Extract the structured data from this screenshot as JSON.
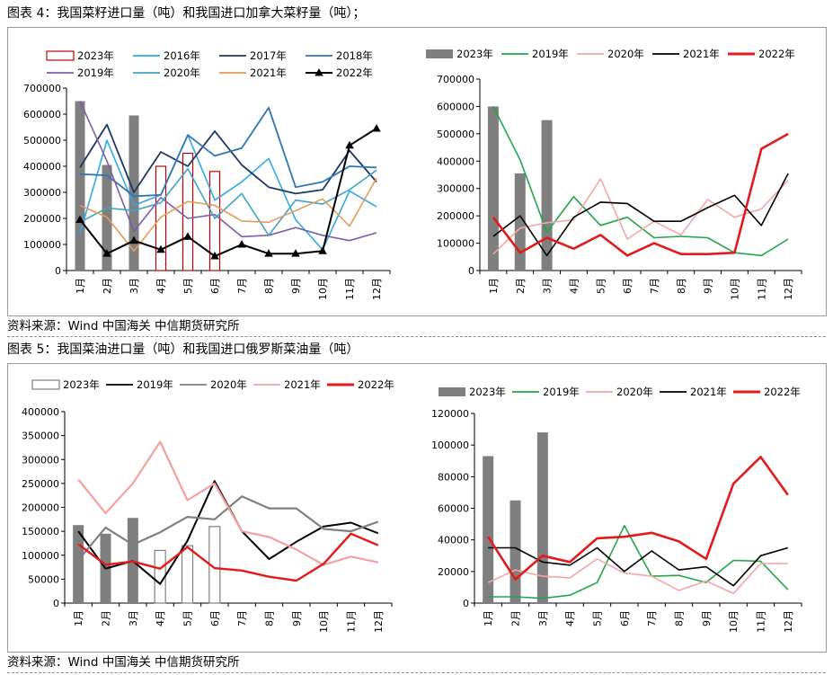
{
  "figure4": {
    "title": "图表 4：我国菜籽进口量（吨）和我国进口加拿大菜籽量（吨）；",
    "source": "资料来源：Wind 中国海关 中信期货研究所"
  },
  "figure5": {
    "title": "图表 5：我国菜油进口量（吨）和我国进口俄罗斯菜油量（吨）",
    "source": "资料来源：Wind 中国海关 中信期货研究所"
  },
  "chart_data": [
    {
      "id": "c1",
      "type": "bar",
      "categories": [
        "1月",
        "2月",
        "3月",
        "4月",
        "5月",
        "6月",
        "7月",
        "8月",
        "9月",
        "10月",
        "11月",
        "12月"
      ],
      "ylim": [
        0,
        700000
      ],
      "yticks": [
        "0",
        "100000",
        "200000",
        "300000",
        "400000",
        "500000",
        "600000",
        "700000"
      ],
      "bars": [
        {
          "name": "2023年",
          "color": "#c00000",
          "style": "outline",
          "values": [
            null,
            null,
            null,
            400000,
            450000,
            380000,
            null,
            null,
            null,
            null,
            null,
            null
          ]
        },
        {
          "name": "",
          "color": "#7f7f7f",
          "style": "fill",
          "values": [
            650000,
            405000,
            595000,
            null,
            null,
            null,
            null,
            null,
            null,
            null,
            null,
            null
          ]
        }
      ],
      "series": [
        {
          "name": "2016年",
          "color": "#2eaae6",
          "width": 1.6,
          "values": [
            140000,
            500000,
            250000,
            290000,
            520000,
            270000,
            340000,
            430000,
            195000,
            80000,
            305000,
            245000
          ]
        },
        {
          "name": "2017年",
          "color": "#1f3864",
          "width": 1.8,
          "values": [
            395000,
            560000,
            300000,
            455000,
            400000,
            535000,
            405000,
            320000,
            295000,
            310000,
            460000,
            340000
          ]
        },
        {
          "name": "2018年",
          "color": "#2e75b6",
          "width": 1.8,
          "values": [
            370000,
            365000,
            285000,
            290000,
            520000,
            440000,
            470000,
            625000,
            320000,
            340000,
            400000,
            395000
          ]
        },
        {
          "name": "2019年",
          "color": "#7e5ca8",
          "width": 1.6,
          "values": [
            650000,
            420000,
            150000,
            280000,
            200000,
            215000,
            130000,
            135000,
            165000,
            135000,
            115000,
            145000
          ]
        },
        {
          "name": "2020年",
          "color": "#3ea4c4",
          "width": 1.6,
          "values": [
            185000,
            240000,
            230000,
            260000,
            390000,
            200000,
            295000,
            135000,
            270000,
            255000,
            310000,
            385000
          ]
        },
        {
          "name": "2021年",
          "color": "#e69a5a",
          "width": 1.6,
          "values": [
            250000,
            205000,
            75000,
            205000,
            265000,
            250000,
            190000,
            185000,
            230000,
            275000,
            170000,
            355000
          ]
        },
        {
          "name": "2022年",
          "color": "#000000",
          "width": 2.0,
          "marker": "triangle",
          "values": [
            195000,
            65000,
            115000,
            80000,
            130000,
            55000,
            100000,
            65000,
            65000,
            75000,
            480000,
            545000
          ]
        }
      ],
      "legend": [
        {
          "name": "2023年",
          "kind": "outline",
          "color": "#c00000"
        },
        {
          "name": "2016年",
          "kind": "line",
          "color": "#2eaae6"
        },
        {
          "name": "2017年",
          "kind": "line",
          "color": "#1f3864"
        },
        {
          "name": "2018年",
          "kind": "line",
          "color": "#2e75b6"
        },
        {
          "name": "2019年",
          "kind": "line",
          "color": "#7e5ca8"
        },
        {
          "name": "2020年",
          "kind": "line",
          "color": "#3ea4c4"
        },
        {
          "name": "2021年",
          "kind": "line",
          "color": "#e69a5a"
        },
        {
          "name": "2022年",
          "kind": "triangle",
          "color": "#000000"
        }
      ]
    },
    {
      "id": "c2",
      "type": "bar",
      "categories": [
        "1月",
        "2月",
        "3月",
        "4月",
        "5月",
        "6月",
        "7月",
        "8月",
        "9月",
        "10月",
        "11月",
        "12月"
      ],
      "ylim": [
        0,
        700000
      ],
      "yticks": [
        "0",
        "100000",
        "200000",
        "300000",
        "400000",
        "500000",
        "600000",
        "700000"
      ],
      "bars": [
        {
          "name": "2023年",
          "color": "#7f7f7f",
          "style": "fill",
          "values": [
            600000,
            355000,
            550000,
            null,
            null,
            null,
            null,
            null,
            null,
            null,
            null,
            null
          ]
        }
      ],
      "series": [
        {
          "name": "2019年",
          "color": "#22a64a",
          "width": 1.6,
          "values": [
            600000,
            405000,
            140000,
            270000,
            165000,
            195000,
            120000,
            125000,
            120000,
            65000,
            55000,
            115000
          ]
        },
        {
          "name": "2020年",
          "color": "#f4a6a6",
          "width": 1.6,
          "values": [
            60000,
            155000,
            175000,
            185000,
            335000,
            115000,
            180000,
            130000,
            260000,
            195000,
            225000,
            330000
          ]
        },
        {
          "name": "2021年",
          "color": "#000000",
          "width": 1.6,
          "values": [
            125000,
            200000,
            55000,
            195000,
            250000,
            245000,
            180000,
            180000,
            230000,
            275000,
            165000,
            355000
          ]
        },
        {
          "name": "2022年",
          "color": "#e31a1c",
          "width": 2.6,
          "values": [
            195000,
            65000,
            120000,
            80000,
            130000,
            55000,
            100000,
            60000,
            60000,
            65000,
            445000,
            500000
          ]
        }
      ],
      "legend": [
        {
          "name": "2023年",
          "kind": "bar",
          "color": "#7f7f7f"
        },
        {
          "name": "2019年",
          "kind": "line",
          "color": "#22a64a"
        },
        {
          "name": "2020年",
          "kind": "line",
          "color": "#f4a6a6"
        },
        {
          "name": "2021年",
          "kind": "line",
          "color": "#000000"
        },
        {
          "name": "2022年",
          "kind": "thick",
          "color": "#e31a1c"
        }
      ]
    },
    {
      "id": "c3",
      "type": "bar",
      "categories": [
        "1月",
        "2月",
        "3月",
        "4月",
        "5月",
        "6月",
        "7月",
        "8月",
        "9月",
        "10月",
        "11月",
        "12月"
      ],
      "ylim": [
        0,
        400000
      ],
      "yticks": [
        "0",
        "50000",
        "100000",
        "150000",
        "200000",
        "250000",
        "300000",
        "350000",
        "400000"
      ],
      "bars": [
        {
          "name": "",
          "color": "#7f7f7f",
          "style": "fill",
          "values": [
            163000,
            145000,
            178000,
            null,
            null,
            null,
            null,
            null,
            null,
            null,
            null,
            null
          ]
        },
        {
          "name": "2023年",
          "color": "#7f7f7f",
          "style": "outline",
          "values": [
            null,
            null,
            null,
            110000,
            120000,
            160000,
            null,
            null,
            null,
            null,
            null,
            null
          ]
        }
      ],
      "series": [
        {
          "name": "2019年",
          "color": "#000000",
          "width": 2.0,
          "values": [
            150000,
            72000,
            88000,
            40000,
            130000,
            255000,
            150000,
            92000,
            128000,
            160000,
            168000,
            146000
          ]
        },
        {
          "name": "2020年",
          "color": "#7f7f7f",
          "width": 2.2,
          "values": [
            90000,
            158000,
            122000,
            148000,
            180000,
            175000,
            223000,
            198000,
            198000,
            155000,
            150000,
            170000
          ]
        },
        {
          "name": "2021年",
          "color": "#f4a0a0",
          "width": 2.2,
          "values": [
            258000,
            188000,
            250000,
            337000,
            215000,
            250000,
            150000,
            138000,
            112000,
            80000,
            97000,
            85000
          ]
        },
        {
          "name": "2022年",
          "color": "#e31a1c",
          "width": 2.4,
          "values": [
            123000,
            80000,
            87000,
            72000,
            117000,
            73000,
            68000,
            55000,
            47000,
            82000,
            145000,
            121000
          ]
        }
      ],
      "legend": [
        {
          "name": "2023年",
          "kind": "outline",
          "color": "#7f7f7f"
        },
        {
          "name": "2019年",
          "kind": "line",
          "color": "#000000"
        },
        {
          "name": "2020年",
          "kind": "line",
          "color": "#7f7f7f"
        },
        {
          "name": "2021年",
          "kind": "line",
          "color": "#f4a0a0"
        },
        {
          "name": "2022年",
          "kind": "thick",
          "color": "#e31a1c"
        }
      ]
    },
    {
      "id": "c4",
      "type": "bar",
      "categories": [
        "1月",
        "2月",
        "3月",
        "4月",
        "5月",
        "6月",
        "7月",
        "8月",
        "9月",
        "10月",
        "11月",
        "12月"
      ],
      "ylim": [
        0,
        120000
      ],
      "yticks": [
        "0",
        "20000",
        "40000",
        "60000",
        "80000",
        "100000",
        "120000"
      ],
      "bars": [
        {
          "name": "2023年",
          "color": "#7f7f7f",
          "style": "fill",
          "values": [
            93000,
            65000,
            108000,
            null,
            null,
            null,
            null,
            null,
            null,
            null,
            null,
            null
          ]
        }
      ],
      "series": [
        {
          "name": "2019年",
          "color": "#22a64a",
          "width": 1.6,
          "values": [
            4000,
            4000,
            3000,
            5000,
            13000,
            49000,
            17000,
            17500,
            13000,
            27000,
            26500,
            8500
          ]
        },
        {
          "name": "2020年",
          "color": "#f4a6a6",
          "width": 1.6,
          "values": [
            13000,
            21000,
            17000,
            16000,
            28000,
            19000,
            17000,
            8000,
            14000,
            6000,
            25000,
            25000
          ]
        },
        {
          "name": "2021年",
          "color": "#000000",
          "width": 1.6,
          "values": [
            35000,
            35000,
            26000,
            24000,
            35000,
            20000,
            33000,
            21000,
            23000,
            11000,
            30000,
            35000
          ]
        },
        {
          "name": "2022年",
          "color": "#e31a1c",
          "width": 2.6,
          "values": [
            42000,
            15000,
            30000,
            26000,
            41000,
            42000,
            44500,
            39000,
            28000,
            75500,
            92500,
            68500
          ]
        }
      ],
      "legend": [
        {
          "name": "2023年",
          "kind": "bar",
          "color": "#7f7f7f"
        },
        {
          "name": "2019年",
          "kind": "line",
          "color": "#22a64a"
        },
        {
          "name": "2020年",
          "kind": "line",
          "color": "#f4a6a6"
        },
        {
          "name": "2021年",
          "kind": "line",
          "color": "#000000"
        },
        {
          "name": "2022年",
          "kind": "thick",
          "color": "#e31a1c"
        }
      ]
    }
  ]
}
